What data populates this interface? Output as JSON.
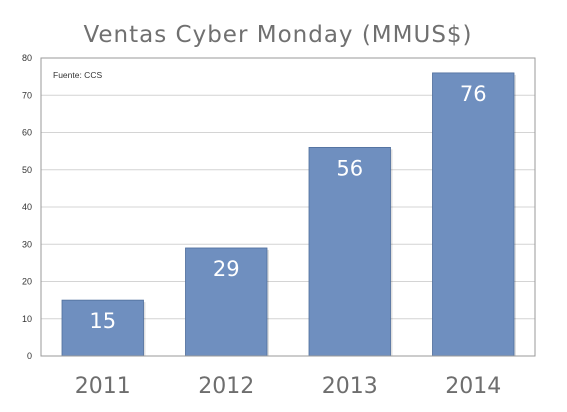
{
  "chart_data": {
    "type": "bar",
    "title": "Ventas Cyber Monday (MMUS$)",
    "source_note": "Fuente: CCS",
    "categories": [
      "2011",
      "2012",
      "2013",
      "2014"
    ],
    "values": [
      15,
      29,
      56,
      76
    ],
    "data_labels": [
      "15",
      "29",
      "56",
      "76"
    ],
    "ylim": [
      0,
      80
    ],
    "yticks": [
      0,
      10,
      20,
      30,
      40,
      50,
      60,
      70,
      80
    ],
    "grid": true,
    "legend": "none",
    "xlabel": "",
    "ylabel": "",
    "colors": {
      "bar": "#6f8fbf",
      "bar_border": "#4f6e9c",
      "grid": "#d4d4d4",
      "axis": "#9a9a9a"
    }
  }
}
